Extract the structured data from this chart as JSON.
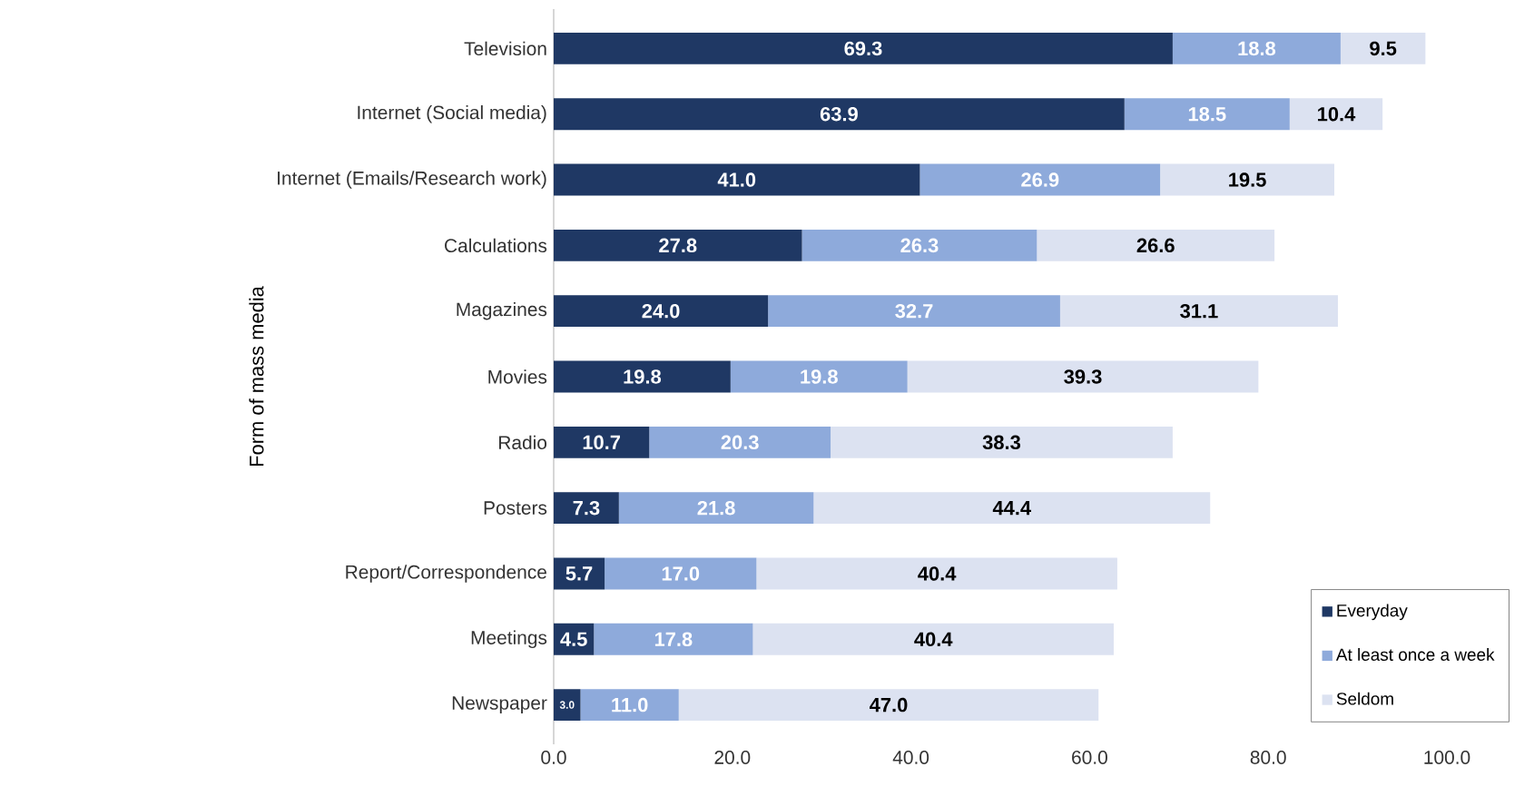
{
  "chart_data": {
    "type": "bar",
    "orientation": "horizontal",
    "stacked": true,
    "ylabel": "Form of mass media",
    "categories": [
      "Television",
      "Internet (Social media)",
      "Internet (Emails/Research work)",
      "Calculations",
      "Magazines",
      "Movies",
      "Radio",
      "Posters",
      "Report/Correspondence",
      "Meetings",
      "Newspaper"
    ],
    "series": [
      {
        "name": "Everyday",
        "color": "#1f3864",
        "values": [
          69.3,
          63.9,
          41.0,
          27.8,
          24.0,
          19.8,
          10.7,
          7.3,
          5.7,
          4.5,
          3.0
        ],
        "value_labels": [
          "69.3",
          "63.9",
          "41.0",
          "27.8",
          "24.0",
          "19.8",
          "10.7",
          "7.3",
          "5.7",
          "4.5",
          "3.0"
        ]
      },
      {
        "name": "At least once a week",
        "color": "#8eaadb",
        "values": [
          18.8,
          18.5,
          26.9,
          26.3,
          32.7,
          19.8,
          20.3,
          21.8,
          17.0,
          17.8,
          11.0
        ],
        "value_labels": [
          "18.8",
          "18.5",
          "26.9",
          "26.3",
          "32.7",
          "19.8",
          "20.3",
          "21.8",
          "17.0",
          "17.8",
          "11.0"
        ]
      },
      {
        "name": "Seldom",
        "color": "#dce2f1",
        "values": [
          9.5,
          10.4,
          19.5,
          26.6,
          31.1,
          39.3,
          38.3,
          44.4,
          40.4,
          40.4,
          47.0
        ],
        "value_labels": [
          "9.5",
          "10.4",
          "19.5",
          "26.6",
          "31.1",
          "39.3",
          "38.3",
          "44.4",
          "40.4",
          "40.4",
          "47.0"
        ]
      }
    ],
    "xlim": [
      0,
      100
    ],
    "xticks": [
      {
        "value": 0,
        "label": "0.0"
      },
      {
        "value": 20,
        "label": "20.0"
      },
      {
        "value": 40,
        "label": "40.0"
      },
      {
        "value": 60,
        "label": "60.0"
      },
      {
        "value": 80,
        "label": "80.0"
      },
      {
        "value": 100,
        "label": "100.0"
      }
    ],
    "legend": "bottom right",
    "grid": false
  }
}
